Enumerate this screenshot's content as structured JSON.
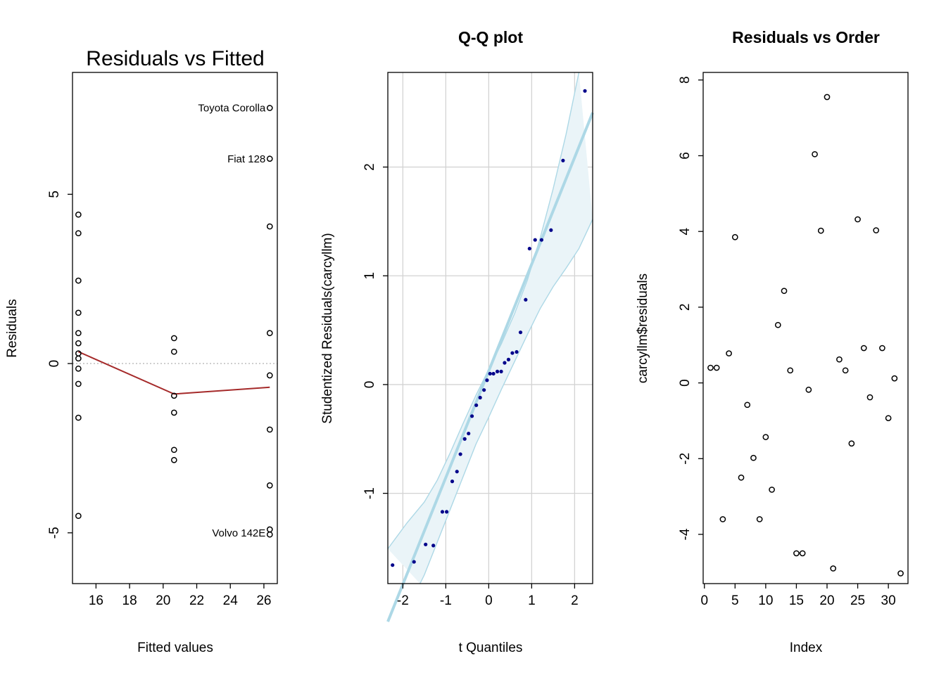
{
  "chart_data": [
    {
      "type": "scatter",
      "title": "Residuals vs Fitted",
      "xlabel": "Fitted values",
      "ylabel": "Residuals",
      "xlim": [
        14.6,
        26.8
      ],
      "ylim": [
        -6.5,
        8.6
      ],
      "xticks": [
        16,
        18,
        20,
        22,
        24,
        26
      ],
      "yticks": [
        -5,
        0,
        5
      ],
      "colors": {
        "points": "#000000",
        "smooth": "#A52A2A",
        "zero_line": "#BEBEBE"
      },
      "points": [
        {
          "x": 14.95,
          "y": 4.4
        },
        {
          "x": 14.95,
          "y": 3.85
        },
        {
          "x": 14.95,
          "y": 2.45
        },
        {
          "x": 14.95,
          "y": 1.5
        },
        {
          "x": 14.95,
          "y": 0.9
        },
        {
          "x": 14.95,
          "y": 0.6
        },
        {
          "x": 14.95,
          "y": 0.3
        },
        {
          "x": 14.95,
          "y": 0.15
        },
        {
          "x": 14.95,
          "y": -0.15
        },
        {
          "x": 14.95,
          "y": -0.6
        },
        {
          "x": 14.95,
          "y": -1.6
        },
        {
          "x": 14.95,
          "y": -4.5
        },
        {
          "x": 20.65,
          "y": 0.75
        },
        {
          "x": 20.65,
          "y": 0.35
        },
        {
          "x": 20.65,
          "y": -0.95
        },
        {
          "x": 20.65,
          "y": -1.45
        },
        {
          "x": 20.65,
          "y": -2.55
        },
        {
          "x": 20.65,
          "y": -2.85
        },
        {
          "x": 26.35,
          "y": 7.55
        },
        {
          "x": 26.35,
          "y": 6.05
        },
        {
          "x": 26.35,
          "y": 4.05
        },
        {
          "x": 26.35,
          "y": 0.9
        },
        {
          "x": 26.35,
          "y": -0.35
        },
        {
          "x": 26.35,
          "y": -1.95
        },
        {
          "x": 26.35,
          "y": -3.6
        },
        {
          "x": 26.35,
          "y": -4.9
        },
        {
          "x": 26.35,
          "y": -5.05
        }
      ],
      "smooth_line": [
        {
          "x": 14.95,
          "y": 0.35
        },
        {
          "x": 20.65,
          "y": -0.9
        },
        {
          "x": 26.35,
          "y": -0.7
        }
      ],
      "zero_line_y": 0,
      "annotations": [
        {
          "label": "Toyota Corolla",
          "x": 26.35,
          "y": 7.55
        },
        {
          "label": "Fiat 128",
          "x": 26.35,
          "y": 6.05
        },
        {
          "label": "Volvo 142E",
          "x": 26.35,
          "y": -5.0
        }
      ]
    },
    {
      "type": "scatter",
      "title": "Q-Q plot",
      "xlabel": "t Quantiles",
      "ylabel": "Studentized Residuals(carcyllm)",
      "xlim": [
        -2.35,
        2.42
      ],
      "ylim": [
        -1.83,
        2.87
      ],
      "xticks": [
        -2,
        -1,
        0,
        1,
        2
      ],
      "yticks": [
        -1,
        0,
        1,
        2
      ],
      "grid": true,
      "colors": {
        "points": "#00008B",
        "line": "#ADD8E6",
        "band_fill": "#EAF4F8",
        "band_edge": "#ADD8E6",
        "grid": "#D3D3D3"
      },
      "points": [
        {
          "x": -2.24,
          "y": -1.66
        },
        {
          "x": -1.74,
          "y": -1.63
        },
        {
          "x": -1.47,
          "y": -1.47
        },
        {
          "x": -1.29,
          "y": -1.48
        },
        {
          "x": -1.08,
          "y": -1.17
        },
        {
          "x": -0.98,
          "y": -1.17
        },
        {
          "x": -0.85,
          "y": -0.89
        },
        {
          "x": -0.74,
          "y": -0.8
        },
        {
          "x": -0.66,
          "y": -0.64
        },
        {
          "x": -0.56,
          "y": -0.5
        },
        {
          "x": -0.47,
          "y": -0.45
        },
        {
          "x": -0.39,
          "y": -0.29
        },
        {
          "x": -0.29,
          "y": -0.19
        },
        {
          "x": -0.2,
          "y": -0.12
        },
        {
          "x": -0.11,
          "y": -0.05
        },
        {
          "x": -0.04,
          "y": 0.04
        },
        {
          "x": 0.03,
          "y": 0.1
        },
        {
          "x": 0.11,
          "y": 0.1
        },
        {
          "x": 0.2,
          "y": 0.12
        },
        {
          "x": 0.29,
          "y": 0.12
        },
        {
          "x": 0.37,
          "y": 0.2
        },
        {
          "x": 0.46,
          "y": 0.23
        },
        {
          "x": 0.55,
          "y": 0.29
        },
        {
          "x": 0.65,
          "y": 0.3
        },
        {
          "x": 0.74,
          "y": 0.48
        },
        {
          "x": 0.86,
          "y": 0.78
        },
        {
          "x": 0.95,
          "y": 1.25
        },
        {
          "x": 1.08,
          "y": 1.33
        },
        {
          "x": 1.23,
          "y": 1.33
        },
        {
          "x": 1.45,
          "y": 1.42
        },
        {
          "x": 1.73,
          "y": 2.06
        },
        {
          "x": 2.24,
          "y": 2.7
        }
      ],
      "reference_line": [
        {
          "x": -2.35,
          "y": -2.18
        },
        {
          "x": 2.42,
          "y": 2.5
        }
      ],
      "band_upper": [
        {
          "x": -2.35,
          "y": -1.51
        },
        {
          "x": -1.9,
          "y": -1.27
        },
        {
          "x": -1.5,
          "y": -1.08
        },
        {
          "x": -1.2,
          "y": -0.88
        },
        {
          "x": -0.9,
          "y": -0.63
        },
        {
          "x": -0.6,
          "y": -0.36
        },
        {
          "x": -0.3,
          "y": -0.1
        },
        {
          "x": 0,
          "y": 0.14
        },
        {
          "x": 0.3,
          "y": 0.38
        },
        {
          "x": 0.6,
          "y": 0.65
        },
        {
          "x": 0.9,
          "y": 0.96
        },
        {
          "x": 1.2,
          "y": 1.35
        },
        {
          "x": 1.5,
          "y": 1.8
        },
        {
          "x": 1.8,
          "y": 2.3
        },
        {
          "x": 2.1,
          "y": 2.87
        }
      ],
      "band_lower": [
        {
          "x": 2.42,
          "y": 1.52
        },
        {
          "x": 2.1,
          "y": 1.25
        },
        {
          "x": 1.8,
          "y": 1.07
        },
        {
          "x": 1.5,
          "y": 0.9
        },
        {
          "x": 1.2,
          "y": 0.7
        },
        {
          "x": 0.9,
          "y": 0.46
        },
        {
          "x": 0.6,
          "y": 0.21
        },
        {
          "x": 0.3,
          "y": -0.04
        },
        {
          "x": 0,
          "y": -0.3
        },
        {
          "x": -0.3,
          "y": -0.55
        },
        {
          "x": -0.6,
          "y": -0.85
        },
        {
          "x": -0.9,
          "y": -1.15
        },
        {
          "x": -1.2,
          "y": -1.45
        },
        {
          "x": -1.5,
          "y": -1.75
        },
        {
          "x": -1.6,
          "y": -1.83
        }
      ]
    },
    {
      "type": "scatter",
      "title": "Residuals vs Order",
      "xlabel": "Index",
      "ylabel": "carcyllm$residuals",
      "xlim": [
        -0.2,
        33.2
      ],
      "ylim": [
        -5.3,
        8.2
      ],
      "xticks": [
        0,
        5,
        10,
        15,
        20,
        25,
        30
      ],
      "yticks": [
        -4,
        -2,
        0,
        2,
        4,
        6,
        8
      ],
      "colors": {
        "points": "#000000"
      },
      "points": [
        {
          "x": 1,
          "y": 0.4
        },
        {
          "x": 2,
          "y": 0.4
        },
        {
          "x": 3,
          "y": -3.6
        },
        {
          "x": 4,
          "y": 0.78
        },
        {
          "x": 5,
          "y": 3.85
        },
        {
          "x": 6,
          "y": -2.5
        },
        {
          "x": 7,
          "y": -0.58
        },
        {
          "x": 8,
          "y": -1.98
        },
        {
          "x": 9,
          "y": -3.6
        },
        {
          "x": 10,
          "y": -1.43
        },
        {
          "x": 11,
          "y": -2.82
        },
        {
          "x": 12,
          "y": 1.53
        },
        {
          "x": 13,
          "y": 2.43
        },
        {
          "x": 14,
          "y": 0.33
        },
        {
          "x": 15,
          "y": -4.5
        },
        {
          "x": 16,
          "y": -4.5
        },
        {
          "x": 17,
          "y": -0.18
        },
        {
          "x": 18,
          "y": 6.04
        },
        {
          "x": 19,
          "y": 4.02
        },
        {
          "x": 20,
          "y": 7.55
        },
        {
          "x": 21,
          "y": -4.9
        },
        {
          "x": 22,
          "y": 0.62
        },
        {
          "x": 23,
          "y": 0.33
        },
        {
          "x": 24,
          "y": -1.6
        },
        {
          "x": 25,
          "y": 4.32
        },
        {
          "x": 26,
          "y": 0.92
        },
        {
          "x": 27,
          "y": -0.38
        },
        {
          "x": 28,
          "y": 4.03
        },
        {
          "x": 29,
          "y": 0.92
        },
        {
          "x": 30,
          "y": -0.93
        },
        {
          "x": 31,
          "y": 0.12
        },
        {
          "x": 32,
          "y": -5.03
        }
      ]
    }
  ]
}
